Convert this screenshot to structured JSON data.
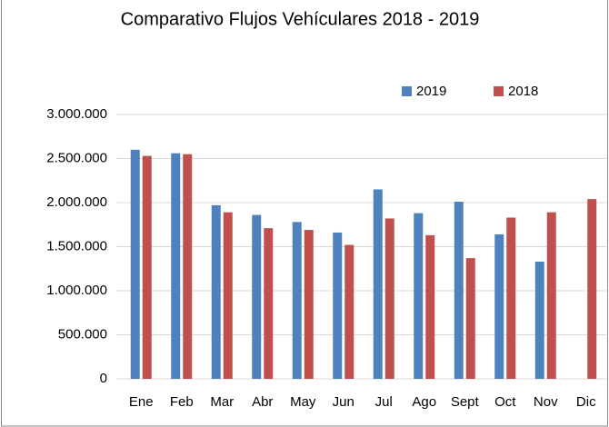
{
  "chart_data": {
    "type": "bar",
    "title": "Comparativo Flujos Vehículares 2018 - 2019",
    "categories": [
      "Ene",
      "Feb",
      "Mar",
      "Abr",
      "May",
      "Jun",
      "Jul",
      "Ago",
      "Sept",
      "Oct",
      "Nov",
      "Dic"
    ],
    "series": [
      {
        "name": "2019",
        "color": "#4f81bd",
        "values": [
          2600000,
          2560000,
          1970000,
          1860000,
          1780000,
          1660000,
          2150000,
          1880000,
          2010000,
          1640000,
          1330000,
          null
        ]
      },
      {
        "name": "2018",
        "color": "#c0504d",
        "values": [
          2530000,
          2550000,
          1890000,
          1710000,
          1690000,
          1520000,
          1820000,
          1630000,
          1370000,
          1830000,
          1890000,
          2040000
        ]
      }
    ],
    "ylim": [
      0,
      3000000
    ],
    "yticks": [
      0,
      {
        "value": 500000,
        "label": "500.000"
      },
      {
        "value": 1000000,
        "label": "1.000.000"
      },
      {
        "value": 1500000,
        "label": "1.500.000"
      },
      {
        "value": 2000000,
        "label": "2.000.000"
      },
      {
        "value": 2500000,
        "label": "2.500.000"
      },
      {
        "value": 3000000,
        "label": "3.000.000"
      }
    ],
    "grid": true
  }
}
